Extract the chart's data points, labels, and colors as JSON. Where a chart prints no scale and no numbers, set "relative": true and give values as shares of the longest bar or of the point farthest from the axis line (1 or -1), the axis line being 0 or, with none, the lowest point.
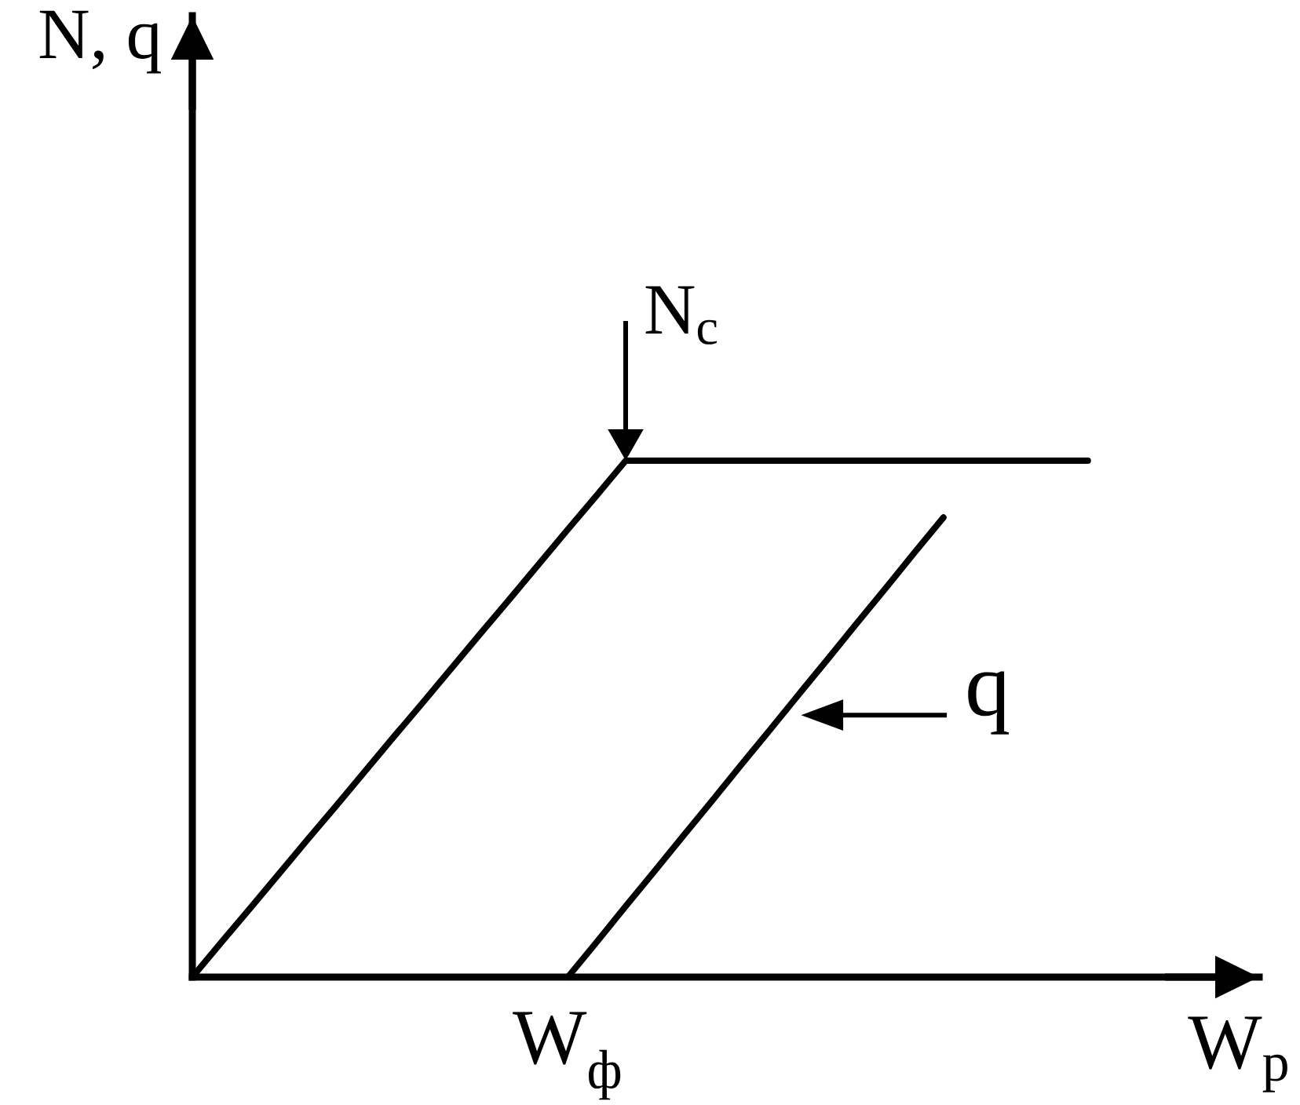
{
  "chart_data": {
    "type": "line",
    "relative": true,
    "xlabel": "W$_{p}$",
    "categories": [
      null,
      null,
      null,
      null,
      null,
      null,
      null,
      null,
      null,
      null,
      null,
      null,
      null,
      null,
      null,
      null,
      null,
      null,
      null,
      null,
      null,
      null,
      null,
      null,
      null,
      null,
      null,
      null,
      null,
      null,
      null,
      null
    ],
    "series": [
      {
        "color": "#000000",
        "values": [
          0,
          0.067,
          0.133,
          0.2,
          0.267,
          0.333,
          0.4,
          0.467,
          0.533,
          0.6,
          0.667,
          0.733,
          0.8,
          0.867,
          0.933,
          1,
          1,
          1,
          1,
          1,
          1,
          1,
          1,
          1,
          1,
          1,
          1,
          1,
          1,
          1,
          1,
          1
        ]
      },
      {
        "name": "q",
        "color": "#000000",
        "values": [
          null,
          null,
          null,
          null,
          null,
          null,
          null,
          null,
          null,
          null,
          null,
          null,
          null,
          0,
          0.068,
          0.137,
          0.205,
          0.274,
          0.342,
          0.411,
          0.479,
          0.548,
          0.616,
          0.685,
          0.753,
          0.822,
          0.89,
          null,
          null,
          null,
          null,
          null
        ]
      }
    ],
    "annotations": [
      "N, q",
      {
        "text": "N$_{c}$",
        "y": 1
      },
      {
        "text": "W$_{ф}$",
        "y": 0
      }
    ],
    "line_style": "solid"
  }
}
